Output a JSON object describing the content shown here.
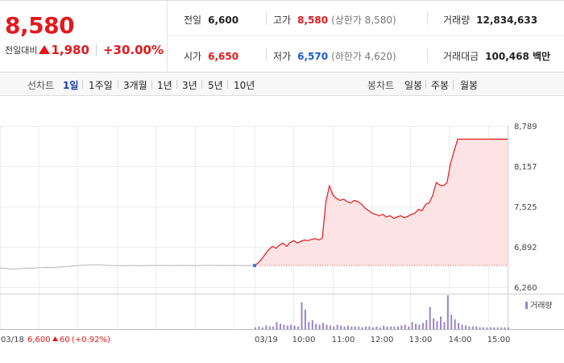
{
  "summary": {
    "price": "8,580",
    "change_label": "전일대비",
    "change_value": "1,980",
    "change_pct": "+30.00%",
    "prev_close_label": "전일",
    "prev_close": "6,600",
    "high_label": "고가",
    "high": "8,580",
    "upper_limit": "(상한가 8,580)",
    "volume_label": "거래량",
    "volume": "12,834,633",
    "open_label": "시가",
    "open": "6,650",
    "low_label": "저가",
    "low": "6,570",
    "lower_limit": "(하한가 4,620)",
    "amount_label": "거래대금",
    "amount": "100,468 백만"
  },
  "tabs": {
    "line_label": "선차트",
    "line_tabs": [
      "1일",
      "1주일",
      "3개월",
      "1년",
      "3년",
      "5년",
      "10년"
    ],
    "candle_label": "봉차트",
    "candle_tabs": [
      "일봉",
      "주봉",
      "월봉"
    ]
  },
  "chart_data": {
    "type": "line",
    "y_ticks": [
      "8,789",
      "8,157",
      "7,525",
      "6,892",
      "6,260"
    ],
    "ylim": [
      6260,
      8789
    ],
    "reference_price": 6600,
    "prev_day": {
      "label": "03/18",
      "close": "6,600",
      "change": "60",
      "change_pct": "(+0.92%)"
    },
    "today_label": "03/19",
    "x_ticks": [
      "10:00",
      "11:00",
      "12:00",
      "13:00",
      "14:00",
      "15:00"
    ],
    "volume_legend": "거래량",
    "prev_series": [
      6560,
      6555,
      6545,
      6550,
      6560,
      6558,
      6565,
      6570,
      6568,
      6575,
      6580,
      6590,
      6600,
      6605,
      6612,
      6610,
      6605,
      6600,
      6598,
      6595,
      6600,
      6598,
      6596,
      6600,
      6602,
      6600,
      6598,
      6600,
      6602,
      6600,
      6598,
      6600,
      6603,
      6600,
      6601,
      6600,
      6602,
      6600,
      6599,
      6600
    ],
    "today_series": [
      6600,
      6640,
      6700,
      6780,
      6850,
      6900,
      6870,
      6920,
      6950,
      6900,
      6960,
      6990,
      6950,
      6980,
      7000,
      6990,
      7010,
      7020,
      7000,
      7030,
      7600,
      7850,
      7700,
      7650,
      7620,
      7640,
      7600,
      7580,
      7620,
      7600,
      7560,
      7500,
      7460,
      7420,
      7400,
      7380,
      7400,
      7360,
      7380,
      7340,
      7360,
      7380,
      7350,
      7370,
      7400,
      7420,
      7480,
      7460,
      7560,
      7580,
      7700,
      7900,
      7860,
      7850,
      7900,
      8200,
      8400,
      8580,
      8580,
      8580,
      8580,
      8580,
      8580,
      8580,
      8580,
      8580,
      8580,
      8580,
      8580,
      8580,
      8580,
      8580
    ],
    "volume_series": [
      2,
      3,
      2,
      4,
      3,
      3,
      8,
      6,
      5,
      4,
      5,
      4,
      3,
      30,
      22,
      8,
      10,
      6,
      5,
      7,
      5,
      4,
      3,
      5,
      4,
      3,
      4,
      3,
      3,
      3,
      2,
      3,
      3,
      2,
      3,
      2,
      4,
      3,
      3,
      3,
      3,
      4,
      5,
      3,
      8,
      6,
      5,
      7,
      10,
      25,
      12,
      9,
      14,
      8,
      38,
      16,
      11,
      7,
      5,
      4,
      3,
      3,
      3,
      2,
      2,
      2,
      2,
      2,
      2,
      2,
      2,
      2
    ]
  }
}
